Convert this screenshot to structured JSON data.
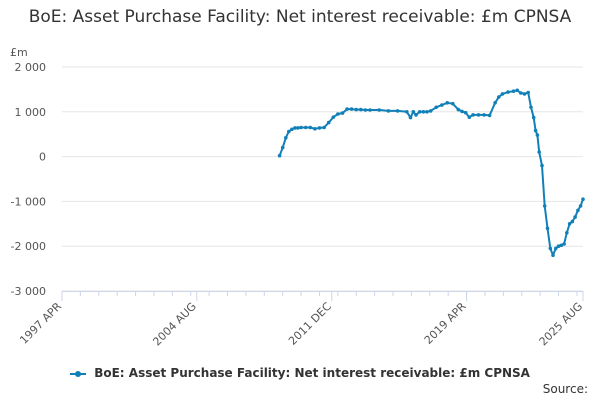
{
  "chart_data": {
    "type": "line",
    "title": "BoE: Asset Purchase Facility: Net interest receivable: £m CPNSA",
    "ylabel": "£m",
    "ylim": [
      -3000,
      2000
    ],
    "yticks": [
      2000,
      1000,
      0,
      -1000,
      -2000,
      -3000
    ],
    "ytick_labels": [
      "2 000",
      "1 000",
      "0",
      "-1 000",
      "-2 000",
      "-3 000"
    ],
    "xlim": [
      1997.25,
      2025.58
    ],
    "xticks": [
      1997.25,
      2004.58,
      2011.92,
      2019.25,
      2025.58
    ],
    "xtick_labels": [
      "1997 APR",
      "2004 AUG",
      "2011 DEC",
      "2019 APR",
      "2025 AUG"
    ],
    "grid": true,
    "legend_position": "bottom",
    "color": "#1280b8",
    "series": [
      {
        "name": "BoE: Asset Purchase Facility: Net interest receivable: £m CPNSA",
        "x": [
          2009.08,
          2009.25,
          2009.42,
          2009.58,
          2009.75,
          2009.92,
          2010.08,
          2010.25,
          2010.5,
          2010.75,
          2011.0,
          2011.25,
          2011.5,
          2011.75,
          2012.0,
          2012.25,
          2012.5,
          2012.75,
          2013.0,
          2013.25,
          2013.5,
          2013.75,
          2014.0,
          2014.5,
          2015.0,
          2015.5,
          2016.0,
          2016.2,
          2016.35,
          2016.5,
          2016.7,
          2016.9,
          2017.1,
          2017.3,
          2017.6,
          2017.9,
          2018.2,
          2018.5,
          2018.8,
          2019.0,
          2019.2,
          2019.4,
          2019.6,
          2019.9,
          2020.2,
          2020.5,
          2020.8,
          2021.0,
          2021.2,
          2021.5,
          2021.8,
          2022.0,
          2022.2,
          2022.4,
          2022.6,
          2022.75,
          2022.9,
          2023.0,
          2023.1,
          2023.2,
          2023.35,
          2023.5,
          2023.65,
          2023.8,
          2023.95,
          2024.1,
          2024.25,
          2024.4,
          2024.55,
          2024.7,
          2024.85,
          2025.0,
          2025.15,
          2025.3,
          2025.45,
          2025.58
        ],
        "values": [
          20,
          200,
          420,
          560,
          610,
          640,
          640,
          650,
          650,
          650,
          620,
          640,
          650,
          760,
          880,
          950,
          970,
          1060,
          1060,
          1050,
          1050,
          1040,
          1040,
          1040,
          1020,
          1020,
          1000,
          870,
          1000,
          930,
          1000,
          1000,
          1000,
          1020,
          1100,
          1150,
          1200,
          1180,
          1050,
          1010,
          980,
          880,
          930,
          930,
          930,
          920,
          1200,
          1330,
          1400,
          1440,
          1460,
          1480,
          1420,
          1400,
          1430,
          1100,
          870,
          580,
          480,
          100,
          -200,
          -1100,
          -1600,
          -2050,
          -2200,
          -2050,
          -2000,
          -1980,
          -1950,
          -1700,
          -1500,
          -1450,
          -1350,
          -1200,
          -1100,
          -950
        ]
      }
    ]
  },
  "legend": {
    "label": "BoE: Asset Purchase Facility: Net interest receivable: £m CPNSA"
  },
  "footer": {
    "source_label": "Source:"
  }
}
